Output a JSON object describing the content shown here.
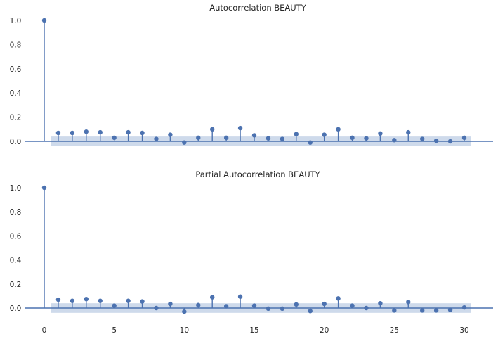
{
  "chart_data": [
    {
      "type": "stem",
      "title": "Autocorrelation BEAUTY",
      "xlabel": "",
      "ylabel": "",
      "xlim": [
        -1.5,
        32
      ],
      "ylim": [
        -0.07,
        1.07
      ],
      "yticks": [
        "0.0",
        "0.2",
        "0.4",
        "0.6",
        "0.8",
        "1.0"
      ],
      "xticks": [],
      "confidence_band": [
        -0.04,
        0.04
      ],
      "lags": [
        0,
        1,
        2,
        3,
        4,
        5,
        6,
        7,
        8,
        9,
        10,
        11,
        12,
        13,
        14,
        15,
        16,
        17,
        18,
        19,
        20,
        21,
        22,
        23,
        24,
        25,
        26,
        27,
        28,
        29,
        30
      ],
      "values": [
        1.0,
        0.07,
        0.07,
        0.08,
        0.075,
        0.03,
        0.075,
        0.07,
        0.02,
        0.055,
        -0.01,
        0.03,
        0.1,
        0.03,
        0.11,
        0.05,
        0.025,
        0.02,
        0.06,
        -0.01,
        0.055,
        0.1,
        0.03,
        0.025,
        0.065,
        0.01,
        0.075,
        0.02,
        0.005,
        0.0,
        0.03
      ],
      "grid": false,
      "color": "#4c72b0",
      "band_color": "#c5d3e8"
    },
    {
      "type": "stem",
      "title": "Partial Autocorrelation BEAUTY",
      "xlabel": "",
      "ylabel": "",
      "xlim": [
        -1.5,
        32
      ],
      "ylim": [
        -0.07,
        1.07
      ],
      "yticks": [
        "0.0",
        "0.2",
        "0.4",
        "0.6",
        "0.8",
        "1.0"
      ],
      "xticks": [
        "0",
        "5",
        "10",
        "15",
        "20",
        "25",
        "30"
      ],
      "confidence_band": [
        -0.04,
        0.04
      ],
      "lags": [
        0,
        1,
        2,
        3,
        4,
        5,
        6,
        7,
        8,
        9,
        10,
        11,
        12,
        13,
        14,
        15,
        16,
        17,
        18,
        19,
        20,
        21,
        22,
        23,
        24,
        25,
        26,
        27,
        28,
        29,
        30
      ],
      "values": [
        1.0,
        0.07,
        0.06,
        0.075,
        0.06,
        0.02,
        0.06,
        0.055,
        0.0,
        0.035,
        -0.03,
        0.025,
        0.09,
        0.015,
        0.095,
        0.02,
        -0.005,
        -0.005,
        0.03,
        -0.025,
        0.035,
        0.08,
        0.02,
        0.0,
        0.04,
        -0.02,
        0.05,
        -0.02,
        -0.02,
        -0.015,
        0.005
      ],
      "grid": false,
      "color": "#4c72b0",
      "band_color": "#c5d3e8"
    }
  ]
}
